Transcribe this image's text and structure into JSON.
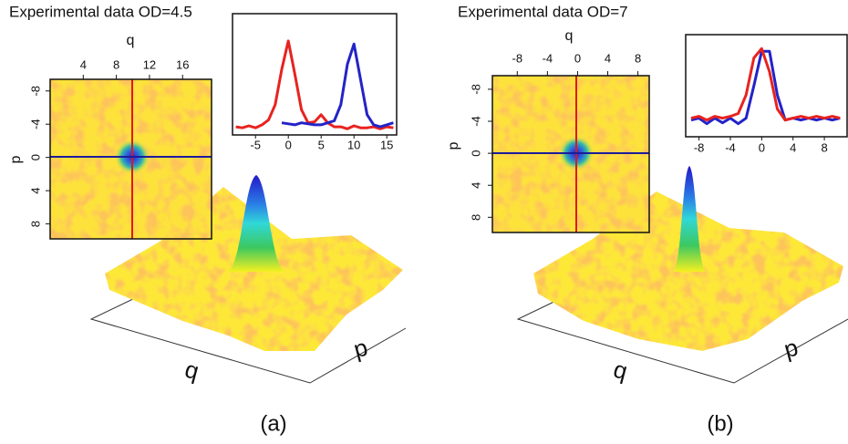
{
  "panels": [
    {
      "title": "Experimental data  OD=4.5",
      "label": "(a)",
      "heatmap": {
        "xlabel": "q",
        "ylabel": "p",
        "xlim": [
          0,
          19.5
        ],
        "xticks": [
          4,
          8,
          12,
          16
        ],
        "ylim": [
          -9.4,
          9.8
        ],
        "yticks": [
          -8,
          -4,
          0,
          4,
          8
        ]
      },
      "surface": {
        "xlabel": "q",
        "ylabel": "p"
      }
    },
    {
      "title": "Experimental data  OD=7",
      "label": "(b)",
      "heatmap": {
        "xlabel": "q",
        "ylabel": "p",
        "xlim": [
          -11.3,
          9.5
        ],
        "xticks": [
          -8,
          -4,
          0,
          4,
          8
        ],
        "ylim": [
          -9.7,
          9.9
        ],
        "yticks": [
          -8,
          -4,
          0,
          4,
          8
        ]
      },
      "surface": {
        "xlabel": "q",
        "ylabel": "p"
      }
    }
  ],
  "chart_data": [
    {
      "type": "line",
      "x": [
        -8,
        -7,
        -6,
        -5,
        -4,
        -3,
        -2,
        -1,
        0,
        1,
        2,
        3,
        4,
        5,
        6,
        7,
        8,
        9,
        10,
        11,
        12,
        13,
        14,
        15,
        16
      ],
      "xlim": [
        -8.5,
        16.5
      ],
      "xticks": [
        -5,
        0,
        5,
        10,
        15
      ],
      "ylim": [
        0,
        1.2
      ],
      "series": [
        {
          "color": "#e8231f",
          "values": [
            0.08,
            0.07,
            0.09,
            0.07,
            0.1,
            0.15,
            0.3,
            0.65,
            0.93,
            0.6,
            0.25,
            0.12,
            0.13,
            0.2,
            0.12,
            0.08,
            0.08,
            0.06,
            0.09,
            0.07,
            0.07,
            0.08,
            0.06,
            0.08,
            0.07
          ]
        },
        {
          "color": "#2323c8",
          "values": [
            null,
            null,
            null,
            null,
            null,
            null,
            null,
            0.12,
            0.11,
            0.1,
            0.12,
            0.11,
            0.1,
            0.1,
            0.12,
            0.14,
            0.3,
            0.7,
            0.9,
            0.55,
            0.2,
            0.1,
            0.08,
            0.1,
            0.12
          ]
        }
      ]
    },
    {
      "type": "line",
      "x": [
        -9,
        -8,
        -7,
        -6,
        -5,
        -4,
        -3,
        -2,
        -1,
        0,
        1,
        2,
        3,
        4,
        5,
        6,
        7,
        8,
        9,
        10
      ],
      "xlim": [
        -9.7,
        10.9
      ],
      "xticks": [
        -8,
        -4,
        0,
        4,
        8
      ],
      "ylim": [
        0,
        1.1
      ],
      "series": [
        {
          "color": "#2323c8",
          "values": [
            0.18,
            0.2,
            0.14,
            0.2,
            0.15,
            0.2,
            0.14,
            0.2,
            0.55,
            0.92,
            0.92,
            0.45,
            0.18,
            0.2,
            0.18,
            0.2,
            0.18,
            0.2,
            0.18,
            0.2
          ]
        },
        {
          "color": "#e8231f",
          "values": [
            0.2,
            0.22,
            0.18,
            0.22,
            0.2,
            0.22,
            0.25,
            0.45,
            0.85,
            0.95,
            0.7,
            0.3,
            0.18,
            0.2,
            0.22,
            0.2,
            0.22,
            0.2,
            0.22,
            0.2
          ]
        }
      ]
    }
  ]
}
